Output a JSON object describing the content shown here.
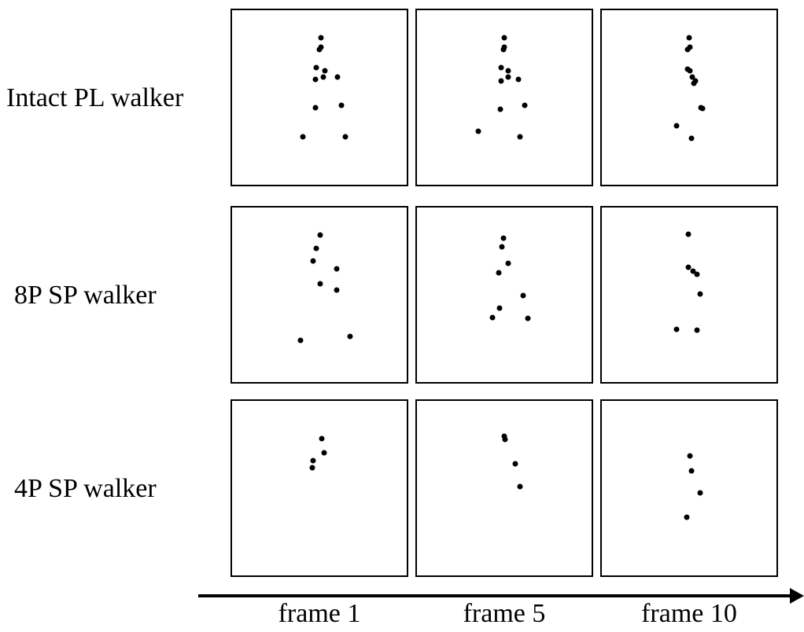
{
  "rows": [
    {
      "label": "Intact PL walker"
    },
    {
      "label": "8P SP walker"
    },
    {
      "label": "4P SP walker"
    }
  ],
  "frames": [
    {
      "label": "frame 1"
    },
    {
      "label": "frame 5"
    },
    {
      "label": "frame 10"
    }
  ]
}
